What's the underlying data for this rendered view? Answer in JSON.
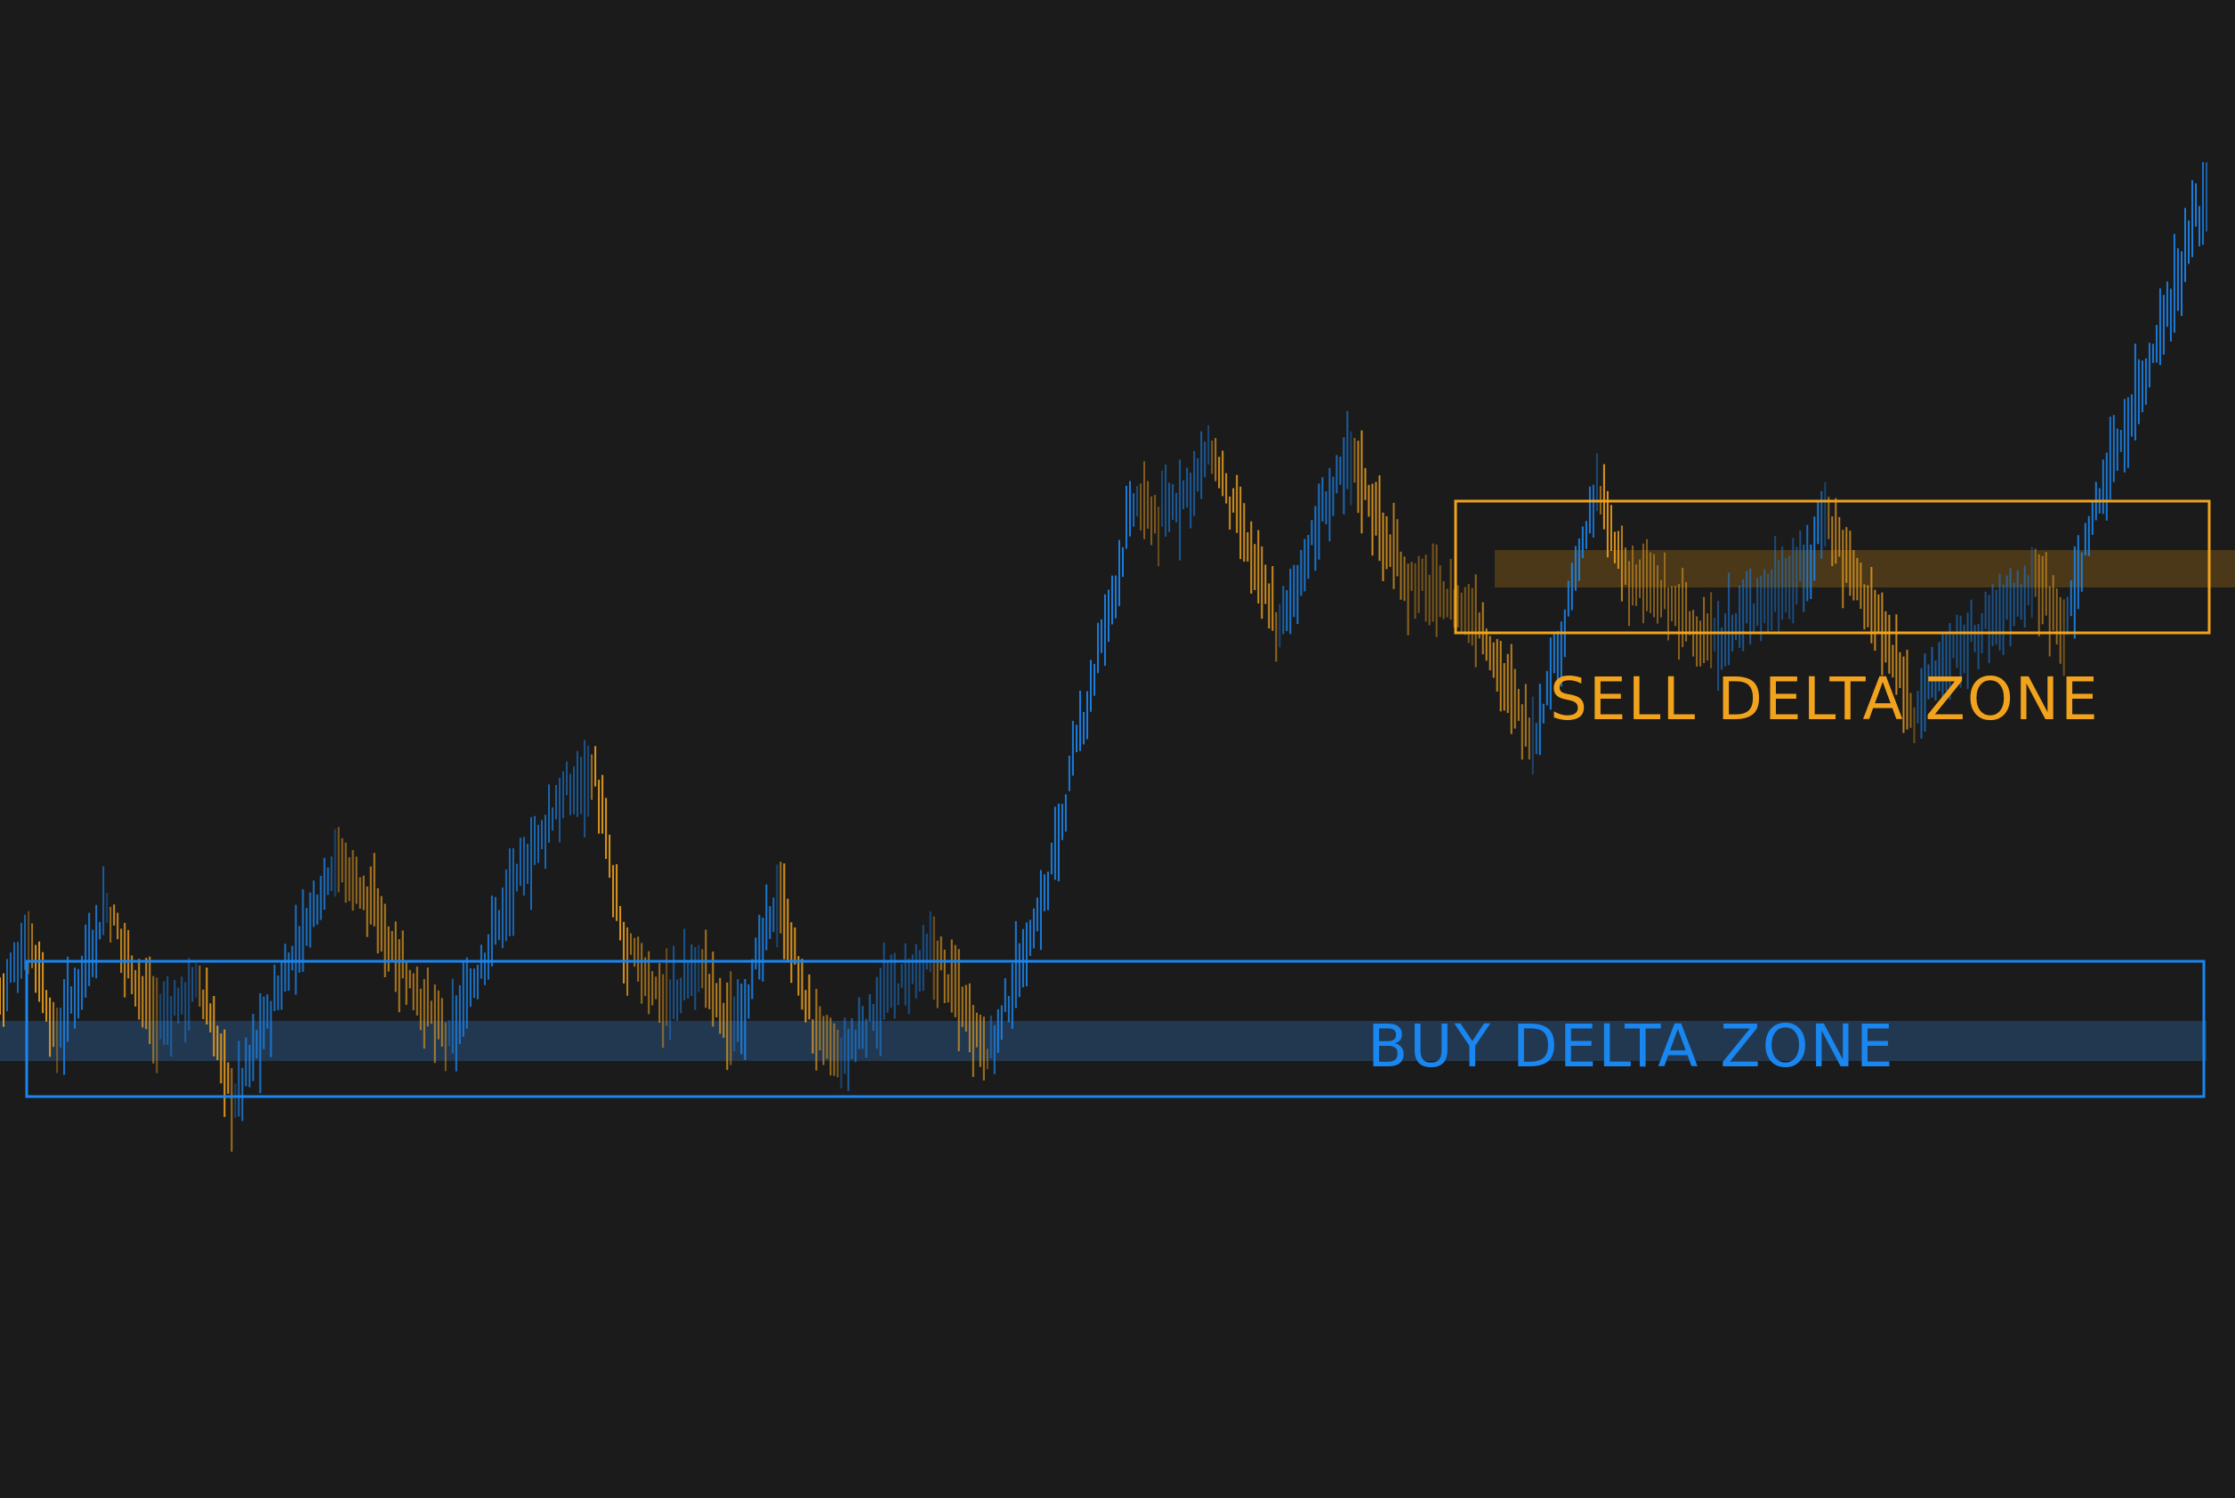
{
  "colors": {
    "background": "#1b1b1b",
    "buy": "#1a86f0",
    "buy_dim": "#3b6aa3",
    "sell": "#f2a31d",
    "sell_dim": "#a9762a",
    "buy_band": "#223850",
    "sell_band": "#4a3819"
  },
  "zones": {
    "sell": {
      "label": "SELL DELTA ZONE"
    },
    "buy": {
      "label": "BUY DELTA ZONE"
    }
  },
  "chart_data": {
    "type": "bar",
    "title": "",
    "xlabel": "",
    "ylabel": "",
    "grid": false,
    "legend": "none",
    "xlim": [
      0,
      1000
    ],
    "ylim": [
      0,
      100
    ],
    "close_path": [
      [
        0,
        8
      ],
      [
        14,
        14
      ],
      [
        25,
        3
      ],
      [
        48,
        17
      ],
      [
        70,
        5
      ],
      [
        90,
        9
      ],
      [
        105,
        -3
      ],
      [
        125,
        8
      ],
      [
        150,
        22
      ],
      [
        162,
        19
      ],
      [
        185,
        9
      ],
      [
        202,
        3
      ],
      [
        225,
        16
      ],
      [
        250,
        27
      ],
      [
        267,
        31
      ],
      [
        280,
        13
      ],
      [
        300,
        7
      ],
      [
        315,
        11
      ],
      [
        330,
        4
      ],
      [
        350,
        18
      ],
      [
        365,
        5
      ],
      [
        378,
        1
      ],
      [
        395,
        7
      ],
      [
        420,
        12
      ],
      [
        433,
        7
      ],
      [
        445,
        2
      ],
      [
        470,
        18
      ],
      [
        485,
        34
      ],
      [
        510,
        58
      ],
      [
        522,
        56
      ],
      [
        545,
        63
      ],
      [
        558,
        55
      ],
      [
        575,
        45
      ],
      [
        595,
        57
      ],
      [
        608,
        63
      ],
      [
        625,
        53
      ],
      [
        633,
        50
      ],
      [
        643,
        49
      ],
      [
        665,
        46
      ],
      [
        680,
        38
      ],
      [
        690,
        34
      ],
      [
        718,
        59
      ],
      [
        730,
        51
      ],
      [
        755,
        47
      ],
      [
        770,
        43
      ],
      [
        790,
        48
      ],
      [
        812,
        51
      ],
      [
        820,
        57
      ],
      [
        840,
        48
      ],
      [
        860,
        37
      ],
      [
        875,
        42
      ],
      [
        900,
        47
      ],
      [
        914,
        50
      ],
      [
        930,
        46
      ],
      [
        940,
        56
      ],
      [
        958,
        67
      ],
      [
        975,
        78
      ],
      [
        992,
        90
      ]
    ],
    "series": [
      {
        "name": "",
        "color": "#1a86f0"
      },
      {
        "name": "",
        "color": "#f2a31d"
      }
    ],
    "annotations": [
      {
        "text": "SELL DELTA ZONE",
        "type": "price-zone",
        "y_range": [
          38,
          52
        ],
        "x_range": [
          650,
          990
        ]
      },
      {
        "text": "BUY DELTA ZONE",
        "type": "price-zone",
        "y_range": [
          2,
          16
        ],
        "x_range": [
          10,
          985
        ]
      }
    ]
  }
}
